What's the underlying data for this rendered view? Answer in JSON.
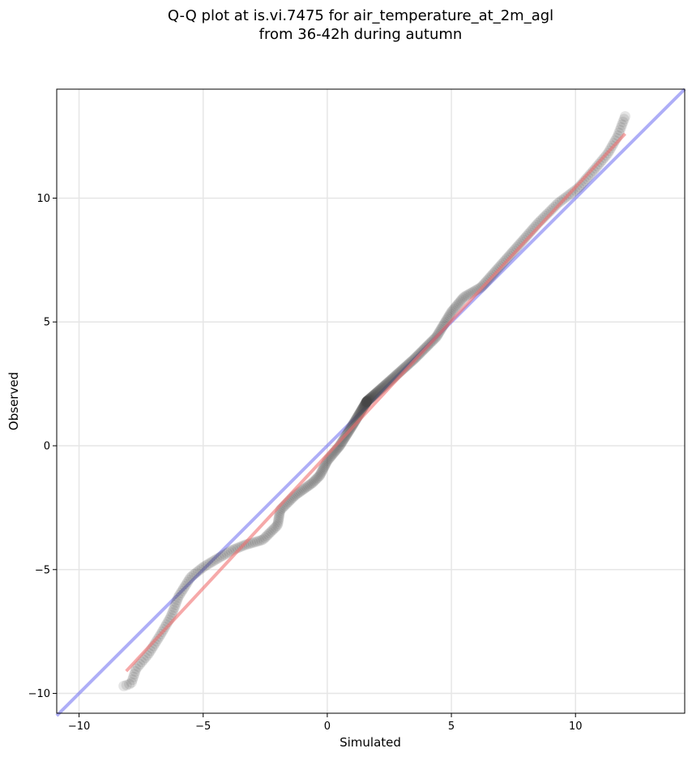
{
  "chart_data": {
    "type": "scatter",
    "title": [
      "Q-Q plot at is.vi.7475 for air_temperature_at_2m_agl",
      "from 36-42h during autumn"
    ],
    "xlabel": "Simulated",
    "ylabel": "Observed",
    "xlim": [
      -10.9,
      14.4
    ],
    "ylim": [
      -10.8,
      14.4
    ],
    "x_ticks": [
      -10,
      -5,
      0,
      5,
      10
    ],
    "y_ticks": [
      -10,
      -5,
      0,
      5,
      10
    ],
    "x_tick_labels": [
      "−10",
      "−5",
      "0",
      "5",
      "10"
    ],
    "y_tick_labels": [
      "−10",
      "−5",
      "0",
      "5",
      "10"
    ],
    "grid": true,
    "colors": {
      "points": "#444444",
      "identity_line": "#6b6bf0",
      "fit_line": "#f07070",
      "grid": "#e6e6e6"
    },
    "identity_line": {
      "x": [
        -10.9,
        14.4
      ],
      "y": [
        -10.9,
        14.4
      ]
    },
    "fit_line": {
      "x": [
        -8.1,
        12.0
      ],
      "y": [
        -9.1,
        12.6
      ]
    },
    "quantile_knots": [
      [
        -8.2,
        -9.7
      ],
      [
        -7.9,
        -9.6
      ],
      [
        -7.7,
        -9.0
      ],
      [
        -7.2,
        -8.4
      ],
      [
        -6.7,
        -7.6
      ],
      [
        -6.3,
        -6.9
      ],
      [
        -6.0,
        -6.1
      ],
      [
        -5.5,
        -5.3
      ],
      [
        -5.0,
        -4.9
      ],
      [
        -4.5,
        -4.6
      ],
      [
        -3.8,
        -4.2
      ],
      [
        -3.3,
        -4.0
      ],
      [
        -2.6,
        -3.8
      ],
      [
        -2.0,
        -3.2
      ],
      [
        -1.9,
        -2.6
      ],
      [
        -1.3,
        -2.0
      ],
      [
        -0.6,
        -1.5
      ],
      [
        -0.3,
        -1.2
      ],
      [
        0.0,
        -0.6
      ],
      [
        0.5,
        0.0
      ],
      [
        1.0,
        0.8
      ],
      [
        1.6,
        1.8
      ],
      [
        2.5,
        2.6
      ],
      [
        3.5,
        3.5
      ],
      [
        4.4,
        4.4
      ],
      [
        5.0,
        5.4
      ],
      [
        5.5,
        6.0
      ],
      [
        6.2,
        6.4
      ],
      [
        7.0,
        7.3
      ],
      [
        7.8,
        8.2
      ],
      [
        8.5,
        9.0
      ],
      [
        9.3,
        9.8
      ],
      [
        10.1,
        10.4
      ],
      [
        10.8,
        11.2
      ],
      [
        11.3,
        11.8
      ],
      [
        11.7,
        12.5
      ],
      [
        12.0,
        13.3
      ]
    ],
    "n_points": 420
  }
}
